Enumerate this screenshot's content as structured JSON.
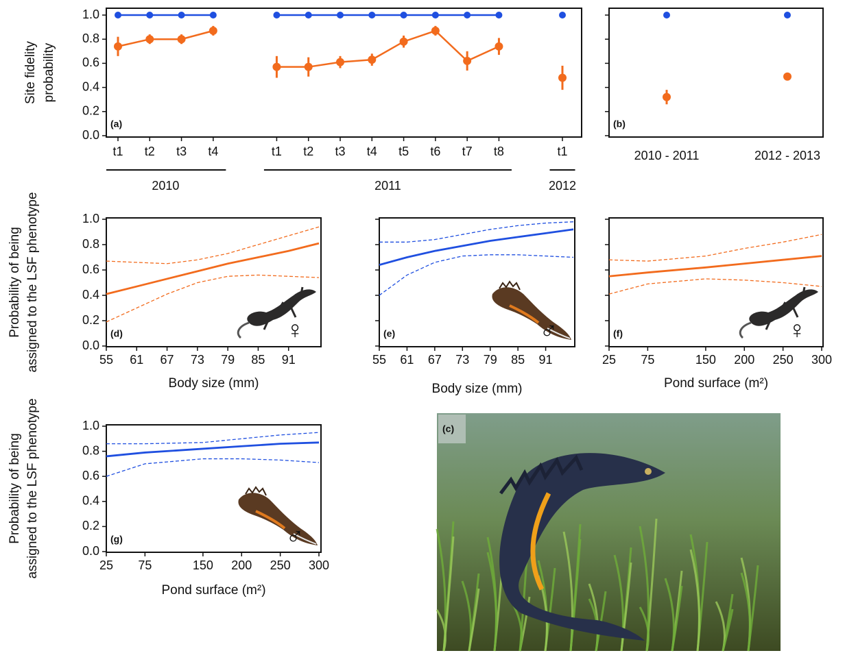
{
  "chart_data": [
    {
      "type": "line",
      "panel_label": "(a)",
      "ylabel": [
        "Site fidelity",
        "probability"
      ],
      "ylim": [
        0,
        1
      ],
      "yticks": [
        {
          "value": 0,
          "label": "0.0"
        },
        0.2,
        0.4,
        0.6,
        0.8,
        {
          "value": 1,
          "label": "1.0"
        }
      ],
      "groups": [
        {
          "name": "2010",
          "categories": [
            "t1",
            "t2",
            "t3",
            "t4"
          ],
          "series": [
            {
              "color": "#1f4fe0",
              "values": [
                1,
                1,
                1,
                1
              ]
            },
            {
              "color": "#f26b1d",
              "values": [
                0.74,
                0.8,
                0.8,
                0.87
              ],
              "errors": [
                0.08,
                0.04,
                0.04,
                0.04
              ]
            }
          ]
        },
        {
          "name": "2011",
          "categories": [
            "t1",
            "t2",
            "t3",
            "t4",
            "t5",
            "t6",
            "t7",
            "t8"
          ],
          "series": [
            {
              "color": "#1f4fe0",
              "values": [
                1,
                1,
                1,
                1,
                1,
                1,
                1,
                1
              ]
            },
            {
              "color": "#f26b1d",
              "values": [
                0.57,
                0.57,
                0.61,
                0.63,
                0.78,
                0.87,
                0.62,
                0.74
              ],
              "errors": [
                0.09,
                0.08,
                0.05,
                0.05,
                0.05,
                0.04,
                0.08,
                0.07
              ]
            }
          ]
        },
        {
          "name": "2012",
          "categories": [
            "t1"
          ],
          "series": [
            {
              "color": "#1f4fe0",
              "values": [
                1
              ]
            },
            {
              "color": "#f26b1d",
              "values": [
                0.48
              ],
              "errors": [
                0.1
              ]
            }
          ]
        }
      ]
    },
    {
      "type": "scatter",
      "panel_label": "(b)",
      "ylim": [
        0,
        1
      ],
      "yticks": [
        0,
        0.2,
        0.4,
        0.6,
        0.8,
        1
      ],
      "y_tick_labels": false,
      "categories": [
        "2010 - 2011",
        "2012 - 2013"
      ],
      "series": [
        {
          "color": "#1f4fe0",
          "values": [
            1,
            1
          ]
        },
        {
          "color": "#f26b1d",
          "values": [
            0.32,
            0.49
          ],
          "errors": [
            0.06,
            0.03
          ]
        }
      ]
    },
    {
      "type": "image",
      "panel_label": "(c)"
    },
    {
      "type": "line",
      "panel_label": "(d)",
      "symbol": "♀",
      "ylabel": [
        "Probability of being",
        "assigned to the LSF phenotype"
      ],
      "xlabel": "Body size (mm)",
      "x": [
        55,
        61,
        67,
        73,
        79,
        85,
        91,
        97
      ],
      "xlim": [
        55,
        97
      ],
      "xticks": [
        55,
        61,
        67,
        73,
        79,
        85,
        91
      ],
      "ylim": [
        0,
        1
      ],
      "yticks": [
        {
          "value": 0,
          "label": "0.0"
        },
        0.2,
        0.4,
        0.6,
        0.8,
        {
          "value": 1,
          "label": "1.0"
        }
      ],
      "series": [
        {
          "color": "#f26b1d",
          "values": [
            0.41,
            0.47,
            0.53,
            0.59,
            0.65,
            0.7,
            0.75,
            0.81
          ]
        },
        {
          "color": "#f26b1d",
          "dash": true,
          "values": [
            0.19,
            0.3,
            0.41,
            0.5,
            0.55,
            0.56,
            0.55,
            0.54
          ]
        },
        {
          "color": "#f26b1d",
          "dash": true,
          "values": [
            0.67,
            0.66,
            0.65,
            0.68,
            0.73,
            0.8,
            0.87,
            0.94
          ]
        }
      ]
    },
    {
      "type": "line",
      "panel_label": "(e)",
      "symbol": "♂",
      "xlabel": "Body size (mm)",
      "x": [
        55,
        61,
        67,
        73,
        79,
        85,
        91,
        97
      ],
      "xlim": [
        55,
        97
      ],
      "xticks": [
        55,
        61,
        67,
        73,
        79,
        85,
        91
      ],
      "ylim": [
        0,
        1
      ],
      "yticks": [
        0,
        0.2,
        0.4,
        0.6,
        0.8,
        1
      ],
      "y_tick_labels": false,
      "series": [
        {
          "color": "#1f4fe0",
          "values": [
            0.64,
            0.7,
            0.75,
            0.79,
            0.83,
            0.86,
            0.89,
            0.92
          ]
        },
        {
          "color": "#1f4fe0",
          "dash": true,
          "values": [
            0.4,
            0.56,
            0.66,
            0.71,
            0.72,
            0.72,
            0.71,
            0.7
          ]
        },
        {
          "color": "#1f4fe0",
          "dash": true,
          "values": [
            0.82,
            0.82,
            0.84,
            0.88,
            0.92,
            0.95,
            0.97,
            0.98
          ]
        }
      ]
    },
    {
      "type": "line",
      "panel_label": "(f)",
      "symbol": "♀",
      "xlabel": "Pond surface (m²)",
      "x": [
        25,
        75,
        150,
        200,
        250,
        300
      ],
      "xlim": [
        25,
        300
      ],
      "xticks": [
        25,
        75,
        150,
        200,
        250,
        300
      ],
      "ylim": [
        0,
        1
      ],
      "yticks": [
        0,
        0.2,
        0.4,
        0.6,
        0.8,
        1
      ],
      "y_tick_labels": false,
      "series": [
        {
          "color": "#f26b1d",
          "values": [
            0.55,
            0.58,
            0.62,
            0.65,
            0.68,
            0.71
          ]
        },
        {
          "color": "#f26b1d",
          "dash": true,
          "values": [
            0.41,
            0.49,
            0.53,
            0.52,
            0.5,
            0.47
          ]
        },
        {
          "color": "#f26b1d",
          "dash": true,
          "values": [
            0.68,
            0.67,
            0.71,
            0.77,
            0.82,
            0.88
          ]
        }
      ]
    },
    {
      "type": "line",
      "panel_label": "(g)",
      "symbol": "♂",
      "ylabel": [
        "Probability of being",
        "assigned to the LSF phenotype"
      ],
      "xlabel": "Pond surface (m²)",
      "x": [
        25,
        75,
        150,
        200,
        250,
        300
      ],
      "xlim": [
        25,
        300
      ],
      "xticks": [
        25,
        75,
        150,
        200,
        250,
        300
      ],
      "ylim": [
        0,
        1
      ],
      "yticks": [
        {
          "value": 0,
          "label": "0.0"
        },
        0.2,
        0.4,
        0.6,
        0.8,
        {
          "value": 1,
          "label": "1.0"
        }
      ],
      "series": [
        {
          "color": "#1f4fe0",
          "values": [
            0.76,
            0.79,
            0.82,
            0.84,
            0.86,
            0.87
          ]
        },
        {
          "color": "#1f4fe0",
          "dash": true,
          "values": [
            0.6,
            0.7,
            0.74,
            0.74,
            0.73,
            0.71
          ]
        },
        {
          "color": "#1f4fe0",
          "dash": true,
          "values": [
            0.86,
            0.86,
            0.87,
            0.9,
            0.93,
            0.95
          ]
        }
      ]
    }
  ]
}
